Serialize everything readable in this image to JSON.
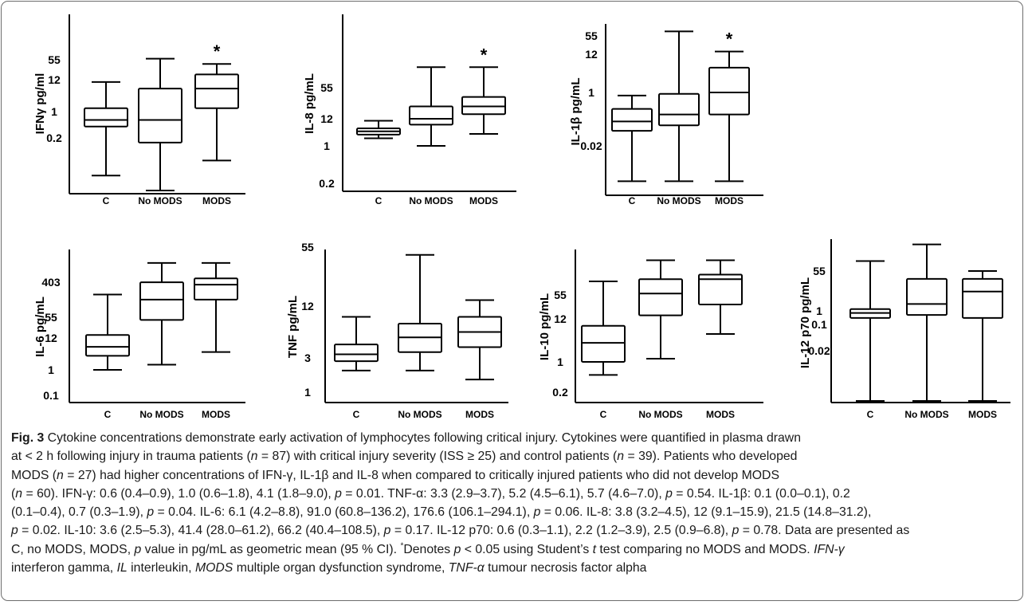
{
  "chart_data": [
    {
      "type": "box",
      "ylabel": "IFNγ pg/ml",
      "yticks": [
        "55",
        "12",
        "1",
        "0.2"
      ],
      "categories": [
        "C",
        "No MODS",
        "MODS"
      ],
      "boxes": [
        {
          "whisker_low": 0.02,
          "q1": 0.4,
          "median": 0.6,
          "q3": 1.3,
          "whisker_high": 10
        },
        {
          "whisker_low": 0.008,
          "q1": 0.15,
          "median": 0.6,
          "q3": 6,
          "whisker_high": 60
        },
        {
          "whisker_low": 0.05,
          "q1": 1.3,
          "median": 6,
          "q3": 18,
          "whisker_high": 40
        }
      ],
      "significant": [
        false,
        false,
        true
      ]
    },
    {
      "type": "box",
      "ylabel": "IL-8 pg/mL",
      "yticks": [
        "55",
        "12",
        "1",
        "0.2"
      ],
      "categories": [
        "C",
        "No MODS",
        "MODS"
      ],
      "boxes": [
        {
          "whisker_low": 2,
          "q1": 2.8,
          "median": 3.8,
          "q3": 5,
          "whisker_high": 10
        },
        {
          "whisker_low": 1,
          "q1": 7,
          "median": 12,
          "q3": 22,
          "whisker_high": 150
        },
        {
          "whisker_low": 3,
          "q1": 15,
          "median": 22,
          "q3": 35,
          "whisker_high": 150
        }
      ],
      "significant": [
        false,
        false,
        true
      ]
    },
    {
      "type": "box",
      "ylabel": "IL-1β pg/mL",
      "yticks": [
        "55",
        "12",
        "1",
        "0.02"
      ],
      "categories": [
        "C",
        "No MODS",
        "MODS"
      ],
      "boxes": [
        {
          "whisker_low": 0.0015,
          "q1": 0.06,
          "median": 0.12,
          "q3": 0.3,
          "whisker_high": 0.8
        },
        {
          "whisker_low": 0.0015,
          "q1": 0.09,
          "median": 0.2,
          "q3": 0.9,
          "whisker_high": 80
        },
        {
          "whisker_low": 0.0015,
          "q1": 0.2,
          "median": 1,
          "q3": 5,
          "whisker_high": 15
        }
      ],
      "significant": [
        false,
        false,
        true
      ]
    },
    {
      "type": "box",
      "ylabel": "IL-6 pg/mL",
      "yticks": [
        "403",
        "55",
        "12",
        "1",
        "0.1"
      ],
      "categories": [
        "C",
        "No MODS",
        "MODS"
      ],
      "boxes": [
        {
          "whisker_low": 1,
          "q1": 3,
          "median": 6,
          "q3": 15,
          "whisker_high": 200
        },
        {
          "whisker_low": 1.5,
          "q1": 45,
          "median": 150,
          "q3": 400,
          "whisker_high": 1200
        },
        {
          "whisker_low": 4,
          "q1": 150,
          "median": 350,
          "q3": 500,
          "whisker_high": 1200
        }
      ],
      "significant": [
        false,
        false,
        false
      ]
    },
    {
      "type": "box",
      "ylabel": "TNF pg/mL",
      "yticks": [
        "55",
        "12",
        "3",
        "1"
      ],
      "categories": [
        "C",
        "No MODS",
        "MODS"
      ],
      "boxes": [
        {
          "whisker_low": 2,
          "q1": 2.7,
          "median": 3.3,
          "q3": 4.3,
          "whisker_high": 9
        },
        {
          "whisker_low": 2,
          "q1": 3.5,
          "median": 5.2,
          "q3": 7.5,
          "whisker_high": 45
        },
        {
          "whisker_low": 1.5,
          "q1": 4,
          "median": 6,
          "q3": 9,
          "whisker_high": 14
        }
      ],
      "significant": [
        false,
        false,
        false
      ]
    },
    {
      "type": "box",
      "ylabel": "IL-10 pg/mL",
      "yticks": [
        "55",
        "12",
        "1",
        "0.2"
      ],
      "categories": [
        "C",
        "No MODS",
        "MODS"
      ],
      "boxes": [
        {
          "whisker_low": 0.5,
          "q1": 1,
          "median": 3,
          "q3": 8,
          "whisker_high": 130
        },
        {
          "whisker_low": 1.2,
          "q1": 15,
          "median": 60,
          "q3": 150,
          "whisker_high": 500
        },
        {
          "whisker_low": 5,
          "q1": 30,
          "median": 150,
          "q3": 200,
          "whisker_high": 500
        }
      ],
      "significant": [
        false,
        false,
        false
      ]
    },
    {
      "type": "box",
      "ylabel": "IL-12 p70 pg/mL",
      "yticks": [
        "55",
        "1",
        "0.1",
        "0.02"
      ],
      "categories": [
        "C",
        "No MODS",
        "MODS"
      ],
      "boxes": [
        {
          "whisker_low": 0.0005,
          "q1": 0.3,
          "median": 0.7,
          "q3": 1.2,
          "whisker_high": 150
        },
        {
          "whisker_low": 0.0005,
          "q1": 0.5,
          "median": 2,
          "q3": 25,
          "whisker_high": 800
        },
        {
          "whisker_low": 0.0005,
          "q1": 0.3,
          "median": 7,
          "q3": 25,
          "whisker_high": 55
        }
      ],
      "significant": [
        false,
        false,
        false
      ]
    }
  ],
  "caption": {
    "fig_label": "Fig. 3",
    "lines": [
      "Cytokine concentrations demonstrate early activation of lymphocytes following critical injury. Cytokines were quantified in plasma drawn",
      "at < 2 h following injury in trauma patients (n = 87) with critical injury severity (ISS ≥ 25) and control patients (n = 39). Patients who developed",
      "MODS (n = 27) had higher concentrations of IFN-γ, IL-1β and IL-8 when compared to critically injured patients who did not develop MODS",
      "(n = 60). IFN-γ: 0.6 (0.4–0.9), 1.0 (0.6–1.8), 4.1 (1.8–9.0), p = 0.01. TNF-α: 3.3 (2.9–3.7), 5.2 (4.5–6.1), 5.7 (4.6–7.0), p = 0.54. IL-1β: 0.1 (0.0–0.1), 0.2",
      "(0.1–0.4), 0.7 (0.3–1.9), p = 0.04. IL-6: 6.1 (4.2–8.8), 91.0 (60.8–136.2), 176.6 (106.1–294.1), p = 0.06. IL-8: 3.8 (3.2–4.5), 12 (9.1–15.9), 21.5 (14.8–31.2),",
      "p = 0.02. IL-10: 3.6 (2.5–5.3), 41.4 (28.0–61.2), 66.2 (40.4–108.5), p = 0.17. IL-12 p70: 0.6 (0.3–1.1), 2.2 (1.2–3.9), 2.5 (0.9–6.8), p = 0.78. Data are presented as",
      "C, no MODS, MODS, p value in pg/mL as geometric mean (95 % CI). *Denotes p < 0.05 using Student’s t test comparing no MODS and MODS. IFN-γ",
      "interferon gamma, IL interleukin, MODS multiple organ dysfunction syndrome, TNF-α tumour necrosis factor alpha"
    ]
  }
}
